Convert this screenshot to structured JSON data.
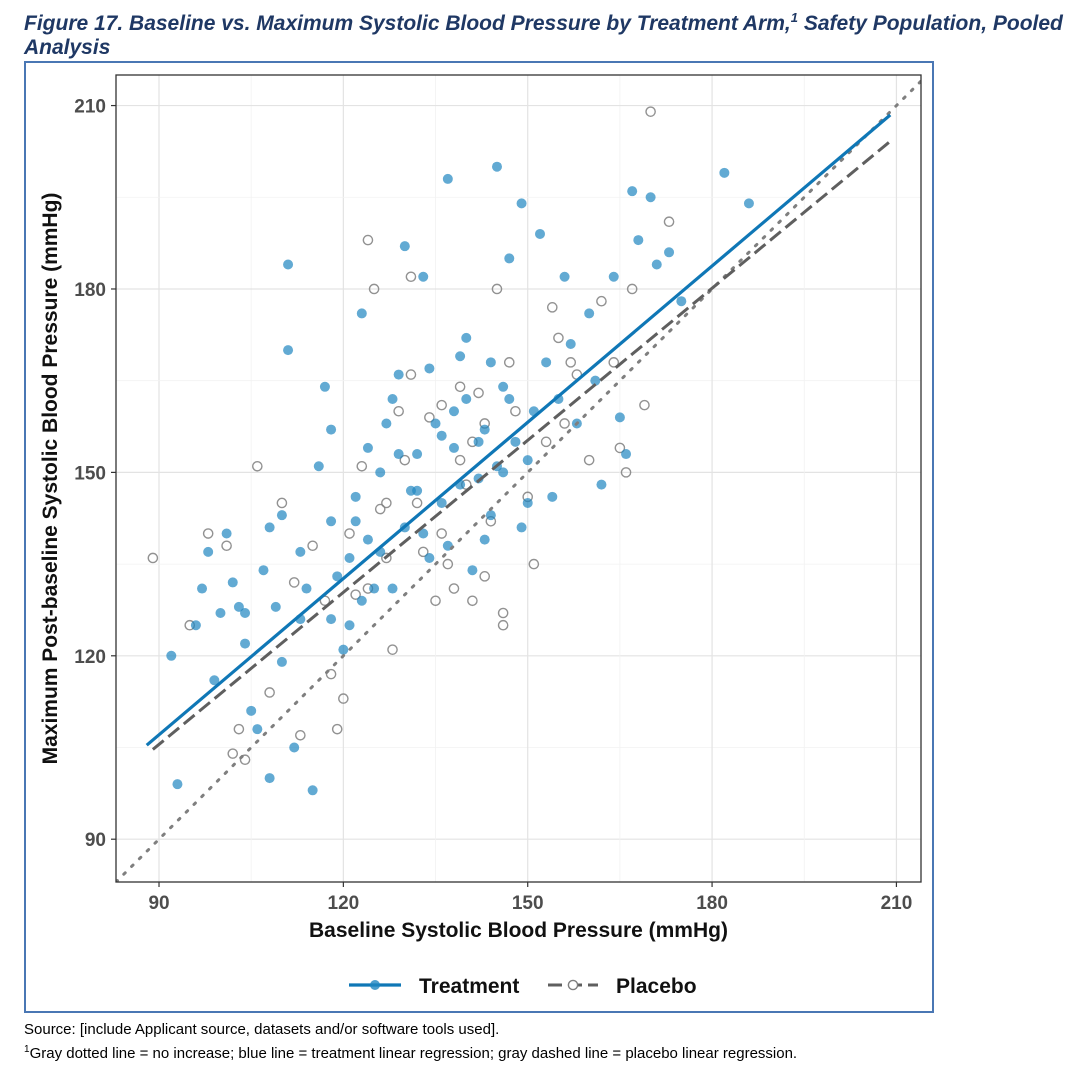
{
  "figure": {
    "title_main": "Figure 17. Baseline vs. Maximum Systolic Blood Pressure by Treatment Arm,",
    "title_sup": "1",
    "title_rest": " Safety Population, Pooled Analysis"
  },
  "footer": {
    "source": "Source: [include Applicant source, datasets and/or software tools used].",
    "note_marker": "1",
    "note": "Gray dotted line = no increase; blue line = treatment linear regression; gray dashed line = placebo linear regression."
  },
  "colors": {
    "treatment": "#1f86c1",
    "placebo": "#7f7f7f",
    "identity": "#7f7f7f",
    "title": "#1f3864",
    "frame": "#4a77b4"
  },
  "chart_data": {
    "type": "scatter",
    "xlabel": "Baseline Systolic Blood Pressure (mmHg)",
    "ylabel": "Maximum Post-baseline Systolic Blood Pressure (mmHg)",
    "xlim": [
      83,
      214
    ],
    "ylim": [
      83,
      215
    ],
    "xticks": [
      90,
      120,
      150,
      180,
      210
    ],
    "yticks": [
      90,
      120,
      150,
      180,
      210
    ],
    "grid": true,
    "legend_position": "bottom",
    "series": [
      {
        "name": "Treatment",
        "marker": "filled-circle",
        "regression": {
          "intercept": 30.4,
          "slope": 0.852,
          "x_range": [
            88,
            209
          ]
        },
        "points": [
          [
            92,
            120
          ],
          [
            93,
            99
          ],
          [
            96,
            125
          ],
          [
            97,
            131
          ],
          [
            99,
            116
          ],
          [
            100,
            127
          ],
          [
            101,
            140
          ],
          [
            102,
            132
          ],
          [
            103,
            128
          ],
          [
            104,
            122
          ],
          [
            105,
            111
          ],
          [
            106,
            108
          ],
          [
            107,
            134
          ],
          [
            108,
            100
          ],
          [
            109,
            128
          ],
          [
            110,
            119
          ],
          [
            110,
            143
          ],
          [
            111,
            184
          ],
          [
            111,
            170
          ],
          [
            112,
            105
          ],
          [
            113,
            137
          ],
          [
            114,
            131
          ],
          [
            115,
            98
          ],
          [
            116,
            151
          ],
          [
            117,
            164
          ],
          [
            118,
            157
          ],
          [
            118,
            142
          ],
          [
            119,
            133
          ],
          [
            120,
            121
          ],
          [
            121,
            136
          ],
          [
            122,
            146
          ],
          [
            123,
            176
          ],
          [
            123,
            129
          ],
          [
            124,
            139
          ],
          [
            125,
            131
          ],
          [
            126,
            150
          ],
          [
            127,
            158
          ],
          [
            128,
            162
          ],
          [
            129,
            166
          ],
          [
            130,
            187
          ],
          [
            130,
            141
          ],
          [
            131,
            147
          ],
          [
            132,
            153
          ],
          [
            133,
            182
          ],
          [
            134,
            167
          ],
          [
            135,
            158
          ],
          [
            136,
            145
          ],
          [
            137,
            138
          ],
          [
            137,
            198
          ],
          [
            138,
            154
          ],
          [
            139,
            169
          ],
          [
            140,
            162
          ],
          [
            141,
            134
          ],
          [
            142,
            149
          ],
          [
            143,
            157
          ],
          [
            144,
            143
          ],
          [
            145,
            200
          ],
          [
            145,
            151
          ],
          [
            146,
            164
          ],
          [
            147,
            185
          ],
          [
            148,
            155
          ],
          [
            149,
            194
          ],
          [
            149,
            141
          ],
          [
            150,
            152
          ],
          [
            151,
            160
          ],
          [
            152,
            189
          ],
          [
            153,
            168
          ],
          [
            154,
            146
          ],
          [
            155,
            162
          ],
          [
            156,
            182
          ],
          [
            157,
            171
          ],
          [
            158,
            158
          ],
          [
            160,
            176
          ],
          [
            161,
            165
          ],
          [
            162,
            148
          ],
          [
            164,
            182
          ],
          [
            165,
            159
          ],
          [
            166,
            153
          ],
          [
            167,
            196
          ],
          [
            168,
            188
          ],
          [
            170,
            195
          ],
          [
            171,
            184
          ],
          [
            173,
            186
          ],
          [
            175,
            178
          ],
          [
            182,
            199
          ],
          [
            186,
            194
          ],
          [
            98,
            137
          ],
          [
            104,
            127
          ],
          [
            108,
            141
          ],
          [
            113,
            126
          ],
          [
            118,
            126
          ],
          [
            121,
            125
          ],
          [
            124,
            154
          ],
          [
            128,
            131
          ],
          [
            133,
            140
          ],
          [
            136,
            156
          ],
          [
            139,
            148
          ],
          [
            143,
            139
          ],
          [
            147,
            162
          ],
          [
            126,
            137
          ],
          [
            129,
            153
          ],
          [
            132,
            147
          ],
          [
            134,
            136
          ],
          [
            138,
            160
          ],
          [
            142,
            155
          ],
          [
            146,
            150
          ],
          [
            150,
            145
          ],
          [
            144,
            168
          ],
          [
            140,
            172
          ],
          [
            122,
            142
          ]
        ]
      },
      {
        "name": "Placebo",
        "marker": "open-circle",
        "regression": {
          "intercept": 30.9,
          "slope": 0.829,
          "x_range": [
            89,
            209
          ]
        },
        "points": [
          [
            89,
            136
          ],
          [
            95,
            125
          ],
          [
            98,
            140
          ],
          [
            101,
            138
          ],
          [
            102,
            104
          ],
          [
            103,
            108
          ],
          [
            104,
            103
          ],
          [
            106,
            151
          ],
          [
            108,
            114
          ],
          [
            110,
            145
          ],
          [
            112,
            132
          ],
          [
            113,
            107
          ],
          [
            115,
            138
          ],
          [
            117,
            129
          ],
          [
            118,
            117
          ],
          [
            119,
            108
          ],
          [
            120,
            113
          ],
          [
            121,
            140
          ],
          [
            122,
            130
          ],
          [
            123,
            151
          ],
          [
            124,
            188
          ],
          [
            125,
            180
          ],
          [
            126,
            144
          ],
          [
            127,
            136
          ],
          [
            128,
            121
          ],
          [
            129,
            160
          ],
          [
            130,
            152
          ],
          [
            131,
            182
          ],
          [
            132,
            145
          ],
          [
            134,
            159
          ],
          [
            135,
            129
          ],
          [
            136,
            140
          ],
          [
            137,
            135
          ],
          [
            138,
            131
          ],
          [
            139,
            164
          ],
          [
            140,
            148
          ],
          [
            141,
            155
          ],
          [
            142,
            163
          ],
          [
            143,
            133
          ],
          [
            144,
            142
          ],
          [
            145,
            180
          ],
          [
            146,
            127
          ],
          [
            146,
            125
          ],
          [
            147,
            168
          ],
          [
            148,
            160
          ],
          [
            150,
            146
          ],
          [
            151,
            135
          ],
          [
            153,
            155
          ],
          [
            155,
            172
          ],
          [
            156,
            158
          ],
          [
            158,
            166
          ],
          [
            160,
            152
          ],
          [
            162,
            178
          ],
          [
            164,
            168
          ],
          [
            165,
            154
          ],
          [
            166,
            150
          ],
          [
            167,
            180
          ],
          [
            169,
            161
          ],
          [
            170,
            209
          ],
          [
            173,
            191
          ],
          [
            127,
            145
          ],
          [
            133,
            137
          ],
          [
            139,
            152
          ],
          [
            143,
            158
          ],
          [
            131,
            166
          ],
          [
            124,
            131
          ],
          [
            136,
            161
          ],
          [
            141,
            129
          ],
          [
            154,
            177
          ],
          [
            157,
            168
          ]
        ]
      },
      {
        "name": "No increase",
        "line": "identity"
      }
    ]
  },
  "legend": {
    "treatment": "Treatment",
    "placebo": "Placebo"
  }
}
